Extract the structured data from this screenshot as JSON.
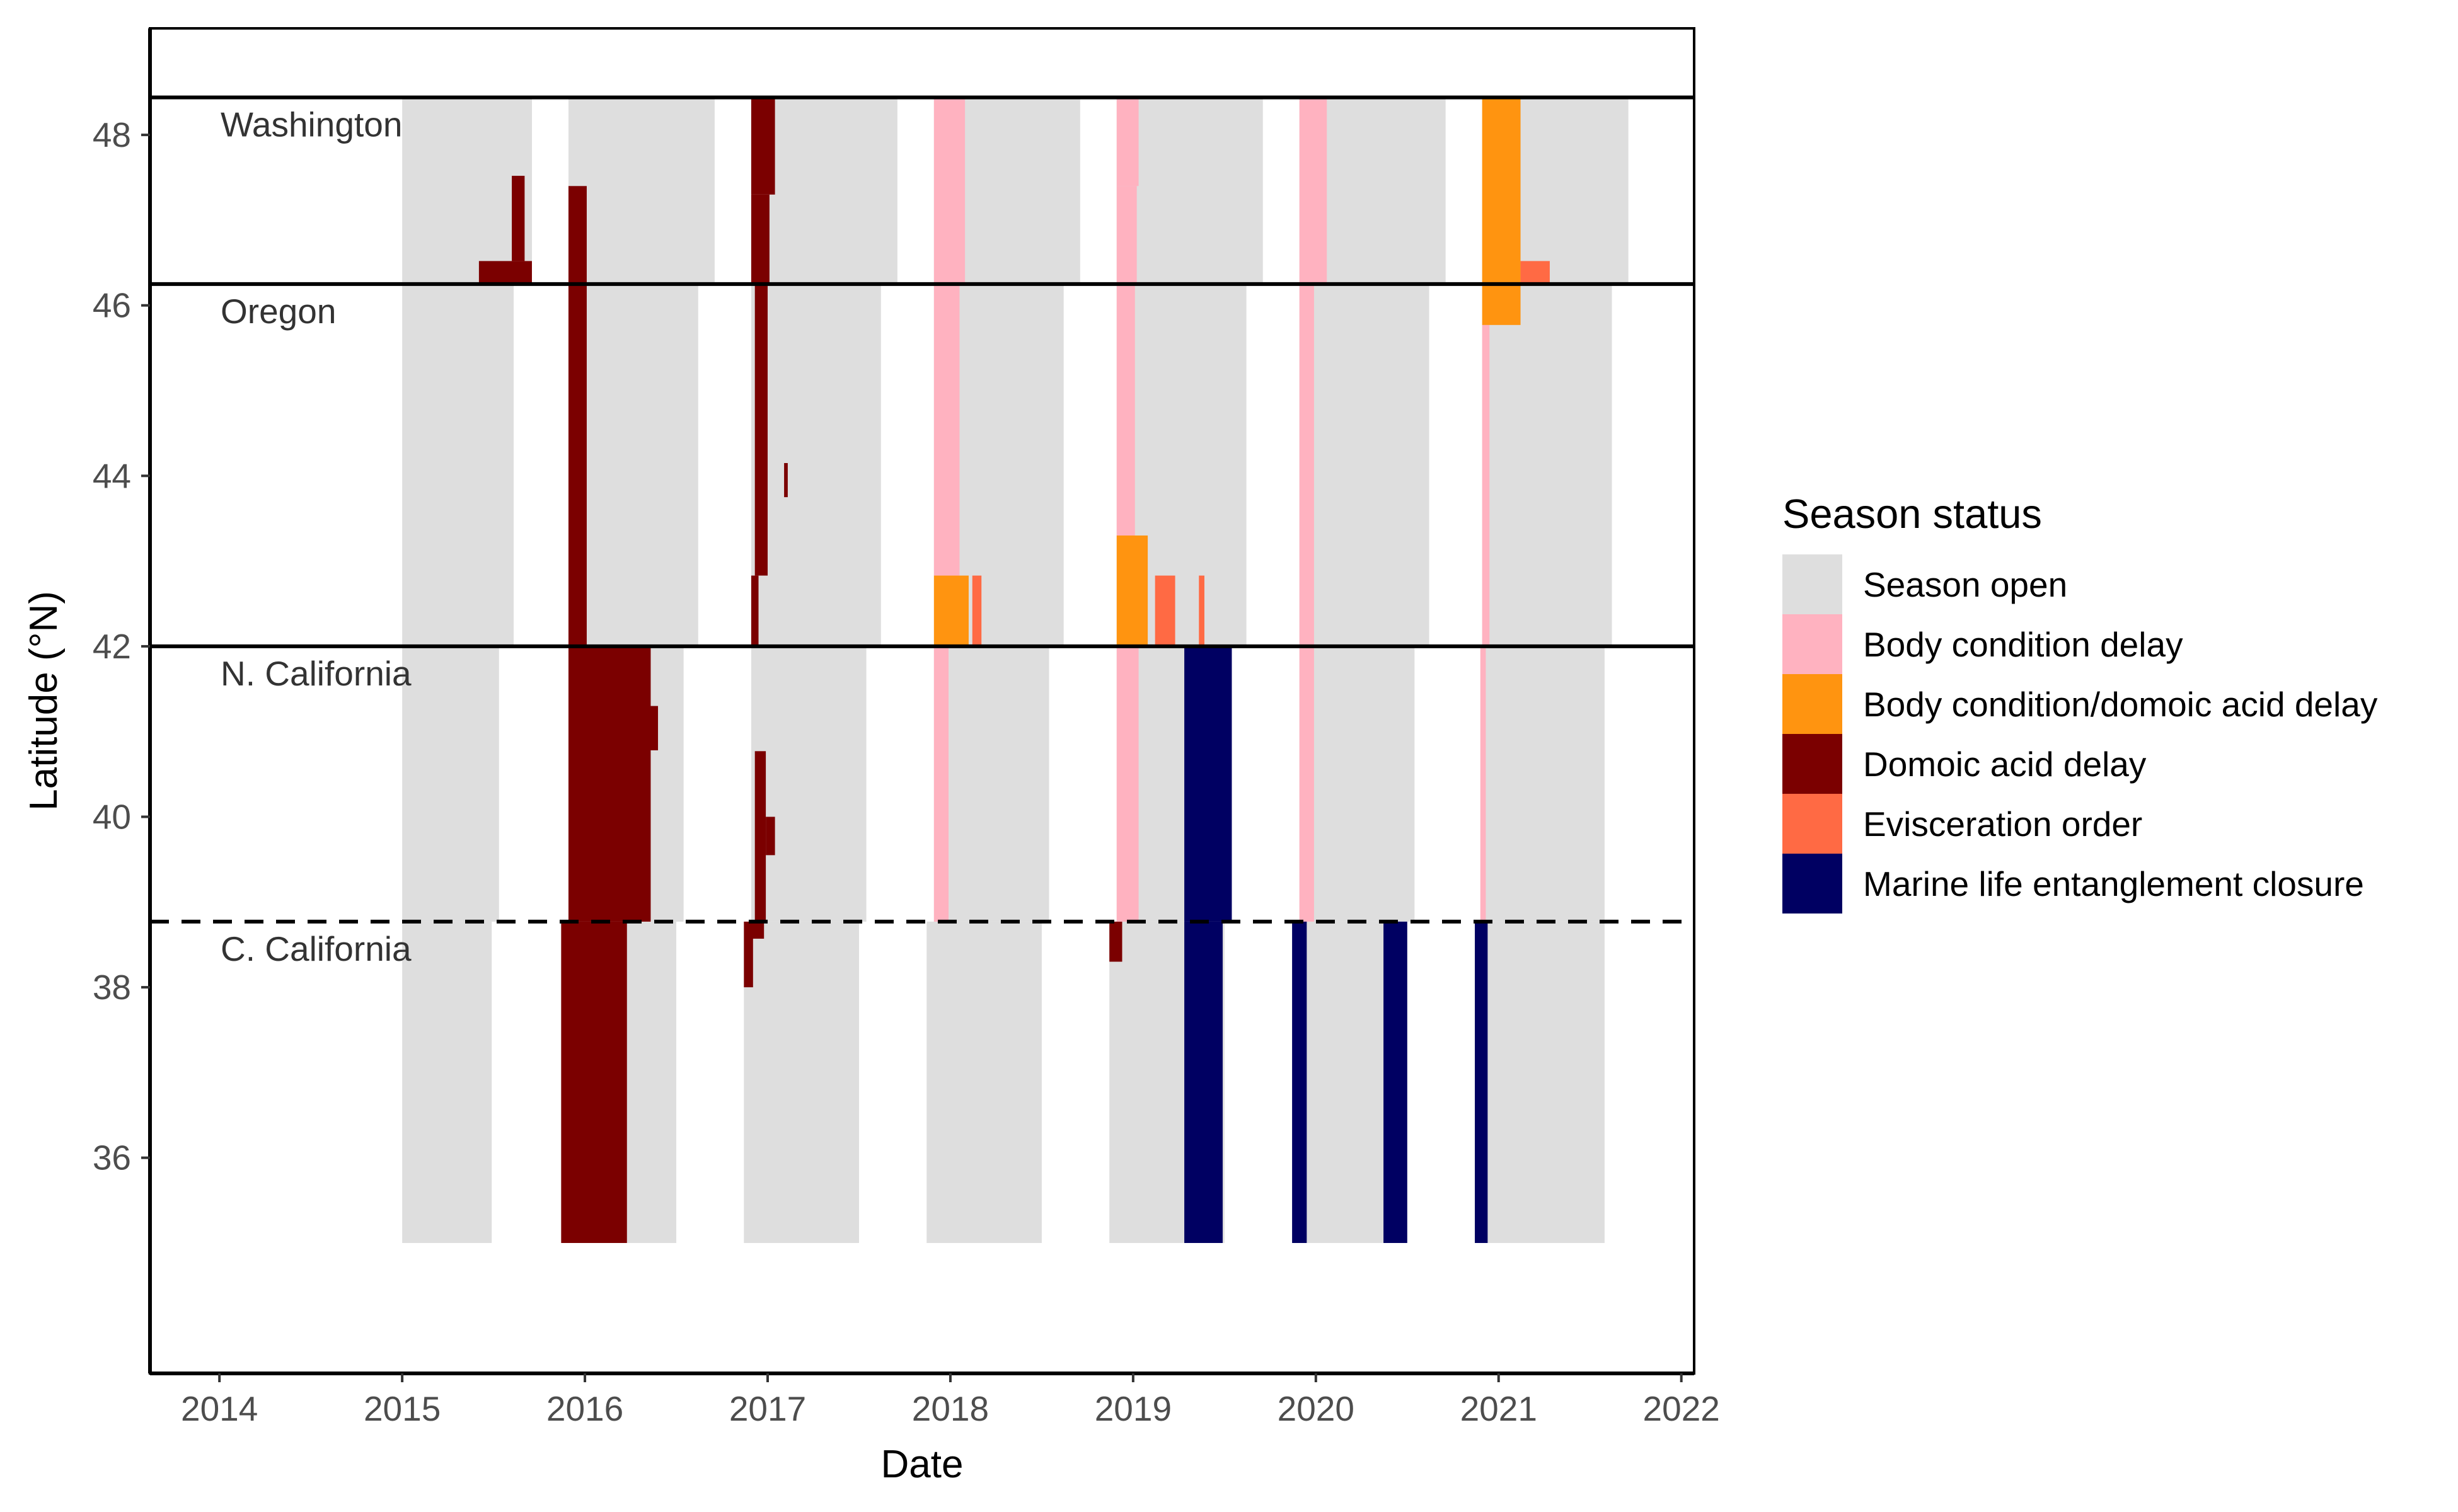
{
  "chart_data": {
    "type": "heatmap",
    "xlabel": "Date",
    "ylabel": "Latitude (°N)",
    "xlim": [
      2013.62,
      2022.07
    ],
    "ylim": [
      33.47,
      49.25
    ],
    "x_ticks": [
      2014,
      2015,
      2016,
      2017,
      2018,
      2019,
      2020,
      2021,
      2022
    ],
    "y_ticks": [
      36,
      38,
      40,
      42,
      44,
      46,
      48
    ],
    "grid": false,
    "legend": {
      "title": "Season status",
      "placement": "right",
      "entries": [
        {
          "name": "Season open",
          "color": "#dedede"
        },
        {
          "name": "Body condition delay",
          "color": "#ffb2c0"
        },
        {
          "name": "Body condition/domoic acid delay",
          "color": "#ff9410"
        },
        {
          "name": "Domoic acid delay",
          "color": "#7b0000"
        },
        {
          "name": "Evisceration order",
          "color": "#ff6a44"
        },
        {
          "name": "Marine life entanglement closure",
          "color": "#000062"
        }
      ]
    },
    "regions": [
      {
        "name": "Washington",
        "y_bottom": 46.25,
        "y_top": 48.44
      },
      {
        "name": "Oregon",
        "y_bottom": 42.0,
        "y_top": 46.25
      },
      {
        "name": "N. California",
        "y_bottom": 38.77,
        "y_top": 42.0
      },
      {
        "name": "C. California",
        "y_bottom": 35.0,
        "y_top": 38.77
      }
    ],
    "boundaries": [
      {
        "lat": 48.44,
        "style": "solid"
      },
      {
        "lat": 46.25,
        "style": "solid"
      },
      {
        "lat": 42.0,
        "style": "solid"
      },
      {
        "lat": 38.77,
        "style": "dashed"
      }
    ],
    "cells": [
      {
        "status": "Season open",
        "x0": 2015.0,
        "x1": 2015.71,
        "y0": 46.25,
        "y1": 48.44
      },
      {
        "status": "Season open",
        "x0": 2015.0,
        "x1": 2015.61,
        "y0": 42.0,
        "y1": 46.25
      },
      {
        "status": "Season open",
        "x0": 2015.0,
        "x1": 2015.53,
        "y0": 38.77,
        "y1": 42.0
      },
      {
        "status": "Season open",
        "x0": 2015.0,
        "x1": 2015.49,
        "y0": 35.0,
        "y1": 38.77
      },
      {
        "status": "Season open",
        "x0": 2015.91,
        "x1": 2016.71,
        "y0": 46.25,
        "y1": 48.44
      },
      {
        "status": "Season open",
        "x0": 2015.91,
        "x1": 2016.62,
        "y0": 42.0,
        "y1": 46.25
      },
      {
        "status": "Season open",
        "x0": 2015.91,
        "x1": 2016.54,
        "y0": 38.77,
        "y1": 42.0
      },
      {
        "status": "Season open",
        "x0": 2015.87,
        "x1": 2016.5,
        "y0": 35.0,
        "y1": 38.77
      },
      {
        "status": "Season open",
        "x0": 2016.91,
        "x1": 2017.71,
        "y0": 46.25,
        "y1": 48.44
      },
      {
        "status": "Season open",
        "x0": 2016.91,
        "x1": 2017.62,
        "y0": 42.0,
        "y1": 46.25
      },
      {
        "status": "Season open",
        "x0": 2016.91,
        "x1": 2017.54,
        "y0": 38.77,
        "y1": 42.0
      },
      {
        "status": "Season open",
        "x0": 2016.87,
        "x1": 2017.5,
        "y0": 35.0,
        "y1": 38.77
      },
      {
        "status": "Season open",
        "x0": 2017.91,
        "x1": 2018.71,
        "y0": 46.25,
        "y1": 48.44
      },
      {
        "status": "Season open",
        "x0": 2017.91,
        "x1": 2018.62,
        "y0": 42.0,
        "y1": 46.25
      },
      {
        "status": "Season open",
        "x0": 2017.91,
        "x1": 2018.54,
        "y0": 38.77,
        "y1": 42.0
      },
      {
        "status": "Season open",
        "x0": 2017.87,
        "x1": 2018.5,
        "y0": 35.0,
        "y1": 38.77
      },
      {
        "status": "Season open",
        "x0": 2018.91,
        "x1": 2019.71,
        "y0": 46.25,
        "y1": 48.44
      },
      {
        "status": "Season open",
        "x0": 2018.91,
        "x1": 2019.62,
        "y0": 42.0,
        "y1": 46.25
      },
      {
        "status": "Season open",
        "x0": 2018.91,
        "x1": 2019.54,
        "y0": 38.77,
        "y1": 42.0
      },
      {
        "status": "Season open",
        "x0": 2018.87,
        "x1": 2019.5,
        "y0": 35.0,
        "y1": 38.77
      },
      {
        "status": "Season open",
        "x0": 2019.91,
        "x1": 2020.71,
        "y0": 46.25,
        "y1": 48.44
      },
      {
        "status": "Season open",
        "x0": 2019.91,
        "x1": 2020.62,
        "y0": 42.0,
        "y1": 46.25
      },
      {
        "status": "Season open",
        "x0": 2019.91,
        "x1": 2020.54,
        "y0": 38.77,
        "y1": 42.0
      },
      {
        "status": "Season open",
        "x0": 2019.87,
        "x1": 2020.5,
        "y0": 35.0,
        "y1": 38.77
      },
      {
        "status": "Season open",
        "x0": 2020.91,
        "x1": 2021.71,
        "y0": 46.25,
        "y1": 48.44
      },
      {
        "status": "Season open",
        "x0": 2020.91,
        "x1": 2021.62,
        "y0": 42.0,
        "y1": 46.25
      },
      {
        "status": "Season open",
        "x0": 2020.91,
        "x1": 2021.58,
        "y0": 38.77,
        "y1": 42.0
      },
      {
        "status": "Season open",
        "x0": 2020.87,
        "x1": 2021.58,
        "y0": 35.0,
        "y1": 38.77
      },
      {
        "status": "Domoic acid delay",
        "x0": 2015.42,
        "x1": 2015.71,
        "y0": 46.25,
        "y1": 46.52
      },
      {
        "status": "Domoic acid delay",
        "x0": 2015.6,
        "x1": 2015.67,
        "y0": 46.52,
        "y1": 47.52
      },
      {
        "status": "Domoic acid delay",
        "x0": 2015.91,
        "x1": 2016.01,
        "y0": 42.0,
        "y1": 47.4
      },
      {
        "status": "Domoic acid delay",
        "x0": 2015.91,
        "x1": 2016.36,
        "y0": 38.77,
        "y1": 42.0
      },
      {
        "status": "Domoic acid delay",
        "x0": 2016.3,
        "x1": 2016.4,
        "y0": 40.78,
        "y1": 41.3
      },
      {
        "status": "Domoic acid delay",
        "x0": 2015.87,
        "x1": 2016.23,
        "y0": 35.0,
        "y1": 38.77
      },
      {
        "status": "Domoic acid delay",
        "x0": 2016.91,
        "x1": 2017.04,
        "y0": 47.3,
        "y1": 48.44
      },
      {
        "status": "Domoic acid delay",
        "x0": 2016.91,
        "x1": 2017.01,
        "y0": 46.25,
        "y1": 47.3
      },
      {
        "status": "Domoic acid delay",
        "x0": 2016.93,
        "x1": 2017.0,
        "y0": 42.83,
        "y1": 46.25
      },
      {
        "status": "Domoic acid delay",
        "x0": 2016.91,
        "x1": 2016.95,
        "y0": 42.0,
        "y1": 42.83
      },
      {
        "status": "Domoic acid delay",
        "x0": 2017.09,
        "x1": 2017.11,
        "y0": 43.75,
        "y1": 44.15
      },
      {
        "status": "Domoic acid delay",
        "x0": 2016.93,
        "x1": 2016.99,
        "y0": 38.77,
        "y1": 40.77
      },
      {
        "status": "Domoic acid delay",
        "x0": 2016.99,
        "x1": 2017.04,
        "y0": 39.55,
        "y1": 40.0
      },
      {
        "status": "Domoic acid delay",
        "x0": 2016.91,
        "x1": 2016.98,
        "y0": 38.57,
        "y1": 38.77
      },
      {
        "status": "Domoic acid delay",
        "x0": 2016.87,
        "x1": 2016.92,
        "y0": 38.0,
        "y1": 38.77
      },
      {
        "status": "Domoic acid delay",
        "x0": 2018.87,
        "x1": 2018.94,
        "y0": 38.3,
        "y1": 38.77
      },
      {
        "status": "Body condition delay",
        "x0": 2017.91,
        "x1": 2018.08,
        "y0": 46.25,
        "y1": 48.44
      },
      {
        "status": "Body condition delay",
        "x0": 2017.91,
        "x1": 2018.05,
        "y0": 42.83,
        "y1": 46.25
      },
      {
        "status": "Body condition delay",
        "x0": 2017.91,
        "x1": 2017.99,
        "y0": 38.77,
        "y1": 42.0
      },
      {
        "status": "Body condition delay",
        "x0": 2018.91,
        "x1": 2019.03,
        "y0": 47.4,
        "y1": 48.44
      },
      {
        "status": "Body condition delay",
        "x0": 2018.91,
        "x1": 2019.02,
        "y0": 46.25,
        "y1": 47.4
      },
      {
        "status": "Body condition delay",
        "x0": 2018.91,
        "x1": 2019.01,
        "y0": 43.3,
        "y1": 46.25
      },
      {
        "status": "Body condition delay",
        "x0": 2018.91,
        "x1": 2019.03,
        "y0": 38.77,
        "y1": 42.0
      },
      {
        "status": "Body condition delay",
        "x0": 2019.91,
        "x1": 2020.06,
        "y0": 46.25,
        "y1": 48.44
      },
      {
        "status": "Body condition delay",
        "x0": 2019.91,
        "x1": 2019.99,
        "y0": 42.0,
        "y1": 46.25
      },
      {
        "status": "Body condition delay",
        "x0": 2019.91,
        "x1": 2019.99,
        "y0": 38.77,
        "y1": 42.0
      },
      {
        "status": "Body condition delay",
        "x0": 2020.91,
        "x1": 2020.95,
        "y0": 42.0,
        "y1": 45.77
      },
      {
        "status": "Body condition delay",
        "x0": 2020.9,
        "x1": 2020.93,
        "y0": 38.77,
        "y1": 42.0
      },
      {
        "status": "Body condition/domoic acid delay",
        "x0": 2020.91,
        "x1": 2021.12,
        "y0": 45.77,
        "y1": 48.44
      },
      {
        "status": "Body condition/domoic acid delay",
        "x0": 2017.91,
        "x1": 2018.1,
        "y0": 42.0,
        "y1": 42.83
      },
      {
        "status": "Body condition/domoic acid delay",
        "x0": 2018.91,
        "x1": 2019.08,
        "y0": 42.0,
        "y1": 43.3
      },
      {
        "status": "Evisceration order",
        "x0": 2021.12,
        "x1": 2021.28,
        "y0": 46.25,
        "y1": 46.52
      },
      {
        "status": "Evisceration order",
        "x0": 2018.12,
        "x1": 2018.17,
        "y0": 42.0,
        "y1": 42.83
      },
      {
        "status": "Evisceration order",
        "x0": 2019.12,
        "x1": 2019.23,
        "y0": 42.0,
        "y1": 42.83
      },
      {
        "status": "Evisceration order",
        "x0": 2019.36,
        "x1": 2019.39,
        "y0": 42.0,
        "y1": 42.83
      },
      {
        "status": "Marine life entanglement closure",
        "x0": 2019.28,
        "x1": 2019.54,
        "y0": 38.77,
        "y1": 42.0
      },
      {
        "status": "Marine life entanglement closure",
        "x0": 2019.28,
        "x1": 2019.49,
        "y0": 35.0,
        "y1": 38.77
      },
      {
        "status": "Marine life entanglement closure",
        "x0": 2019.87,
        "x1": 2019.95,
        "y0": 35.0,
        "y1": 38.77
      },
      {
        "status": "Marine life entanglement closure",
        "x0": 2020.37,
        "x1": 2020.5,
        "y0": 35.0,
        "y1": 38.77
      },
      {
        "status": "Marine life entanglement closure",
        "x0": 2020.87,
        "x1": 2020.94,
        "y0": 35.0,
        "y1": 38.77
      }
    ]
  }
}
